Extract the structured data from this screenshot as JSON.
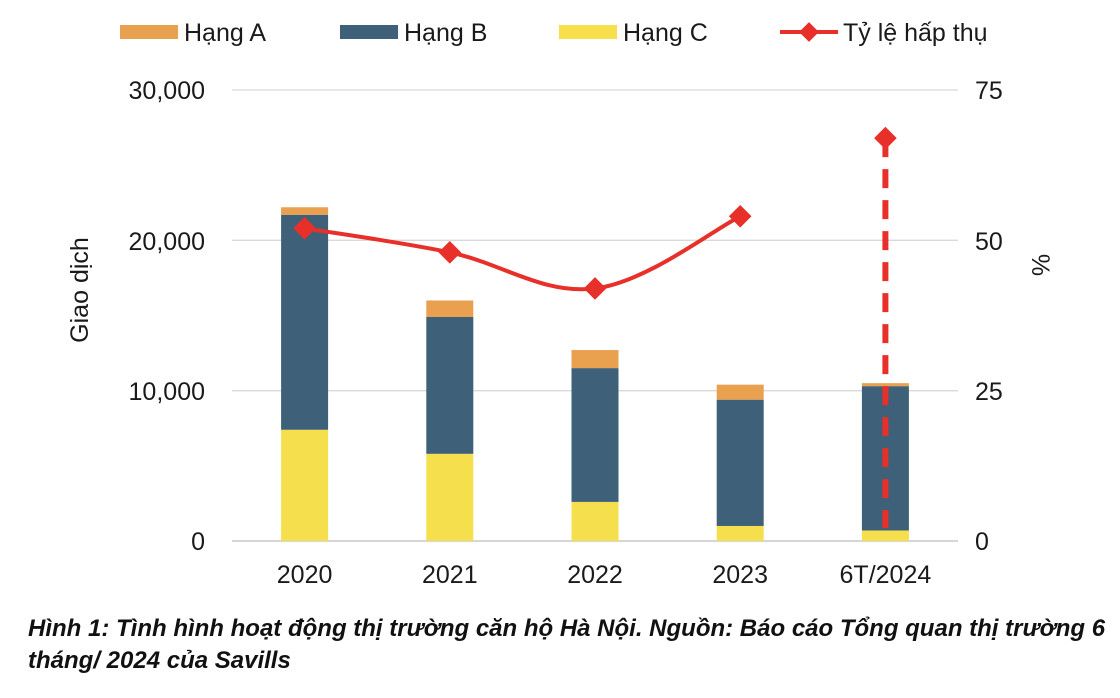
{
  "chart_data": {
    "type": "bar",
    "stacked": true,
    "categories": [
      "2020",
      "2021",
      "2022",
      "2023",
      "6T/2024"
    ],
    "series": [
      {
        "name": "Hạng A",
        "color": "#e9a04f",
        "values": [
          500,
          1100,
          1200,
          1000,
          200
        ]
      },
      {
        "name": "Hạng B",
        "color": "#3e6079",
        "values": [
          14300,
          9100,
          8900,
          8400,
          9600
        ]
      },
      {
        "name": "Hạng C",
        "color": "#f6df4c",
        "values": [
          7400,
          5800,
          2600,
          1000,
          700
        ]
      }
    ],
    "line_series": {
      "name": "Tỷ lệ hấp thụ",
      "color": "#e8302a",
      "axis": "right",
      "values": [
        52,
        48,
        42,
        54,
        null
      ]
    },
    "highlight": {
      "category": "6T/2024",
      "value": 67,
      "style": "dashed"
    },
    "ylabel": "Giao dịch",
    "ylabel_right": "%",
    "ylim": [
      0,
      30000
    ],
    "ylim_right": [
      0,
      75
    ],
    "yticks": [
      "30,000",
      "20,000",
      "10,000",
      "0"
    ],
    "yticks_right": [
      "75",
      "50",
      "25",
      "0"
    ],
    "legend_position": "top",
    "grid": true
  },
  "caption": "Hình 1: Tình hình hoạt động thị trường căn hộ Hà Nội. Nguồn: Báo cáo Tổng quan thị trường 6 tháng/ 2024 của Savills"
}
